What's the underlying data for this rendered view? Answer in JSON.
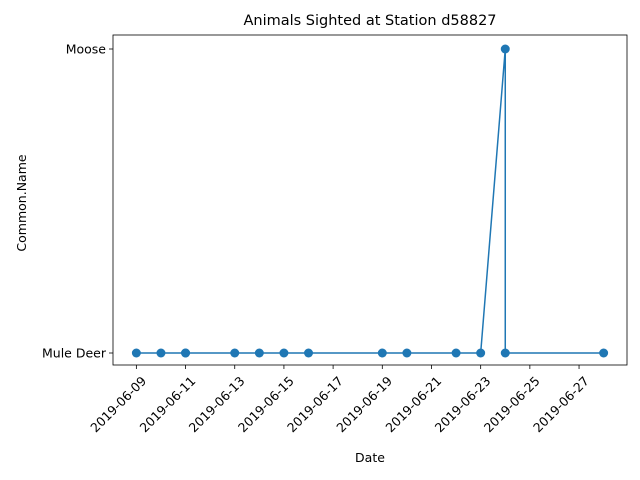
{
  "chart_data": {
    "type": "line",
    "title": "Animals Sighted at Station d58827",
    "xlabel": "Date",
    "ylabel": "Common.Name",
    "categories": [
      "Mule Deer",
      "Moose"
    ],
    "x_ticks": [
      "2019-06-09",
      "2019-06-11",
      "2019-06-13",
      "2019-06-15",
      "2019-06-17",
      "2019-06-19",
      "2019-06-21",
      "2019-06-23",
      "2019-06-25",
      "2019-06-27"
    ],
    "xlim": [
      "2019-06-08",
      "2019-06-29"
    ],
    "series": [
      {
        "color": "#1f77b4",
        "marker": "circle",
        "points": [
          {
            "x": "2019-06-09",
            "y": "Mule Deer"
          },
          {
            "x": "2019-06-10",
            "y": "Mule Deer"
          },
          {
            "x": "2019-06-11",
            "y": "Mule Deer"
          },
          {
            "x": "2019-06-11",
            "y": "Mule Deer"
          },
          {
            "x": "2019-06-13",
            "y": "Mule Deer"
          },
          {
            "x": "2019-06-14",
            "y": "Mule Deer"
          },
          {
            "x": "2019-06-15",
            "y": "Mule Deer"
          },
          {
            "x": "2019-06-16",
            "y": "Mule Deer"
          },
          {
            "x": "2019-06-19",
            "y": "Mule Deer"
          },
          {
            "x": "2019-06-20",
            "y": "Mule Deer"
          },
          {
            "x": "2019-06-22",
            "y": "Mule Deer"
          },
          {
            "x": "2019-06-23",
            "y": "Mule Deer"
          },
          {
            "x": "2019-06-24",
            "y": "Moose"
          },
          {
            "x": "2019-06-24",
            "y": "Mule Deer"
          },
          {
            "x": "2019-06-28",
            "y": "Mule Deer"
          }
        ]
      }
    ],
    "grid": false,
    "legend": "none"
  }
}
